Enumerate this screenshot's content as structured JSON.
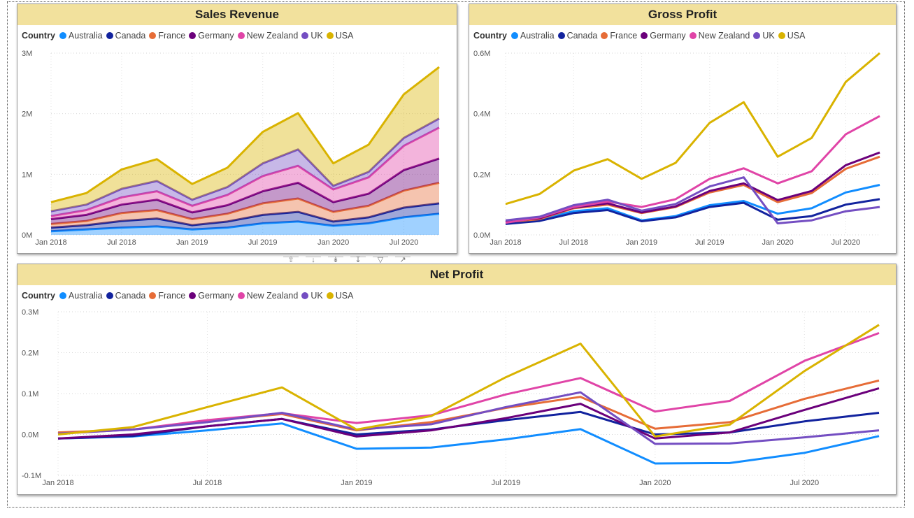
{
  "colors": {
    "Australia": "#118DFF",
    "Canada": "#12239E",
    "France": "#E66C37",
    "Germany": "#6B007B",
    "New Zealand": "#E044A7",
    "UK": "#744EC2",
    "USA": "#D9B300"
  },
  "legend_title": "Country",
  "chart_data": [
    {
      "type": "area",
      "stacked": true,
      "title": "Sales Revenue",
      "legend_title": "Country",
      "x": [
        "Jan 2018",
        "Apr 2018",
        "Jul 2018",
        "Oct 2018",
        "Jan 2019",
        "Apr 2019",
        "Jul 2019",
        "Oct 2019",
        "Jan 2020",
        "Apr 2020",
        "Jul 2020",
        "Oct 2020"
      ],
      "x_tick_labels": [
        "Jan 2018",
        "Jul 2018",
        "Jan 2019",
        "Jul 2019",
        "Jan 2020",
        "Jul 2020"
      ],
      "y_tick_labels": [
        "0M",
        "1M",
        "2M",
        "3M"
      ],
      "ylim": [
        0,
        3000000
      ],
      "series": [
        {
          "name": "Australia",
          "values": [
            60000,
            90000,
            120000,
            140000,
            90000,
            120000,
            190000,
            220000,
            150000,
            190000,
            290000,
            350000
          ]
        },
        {
          "name": "Canada",
          "values": [
            60000,
            70000,
            110000,
            130000,
            70000,
            100000,
            140000,
            160000,
            70000,
            100000,
            160000,
            170000
          ]
        },
        {
          "name": "France",
          "values": [
            60000,
            70000,
            130000,
            140000,
            100000,
            130000,
            190000,
            220000,
            160000,
            190000,
            280000,
            340000
          ]
        },
        {
          "name": "Germany",
          "values": [
            80000,
            100000,
            140000,
            170000,
            110000,
            140000,
            200000,
            260000,
            160000,
            200000,
            340000,
            400000
          ]
        },
        {
          "name": "New Zealand",
          "values": [
            50000,
            80000,
            120000,
            140000,
            110000,
            170000,
            250000,
            280000,
            210000,
            270000,
            400000,
            510000
          ]
        },
        {
          "name": "UK",
          "values": [
            80000,
            90000,
            140000,
            170000,
            100000,
            130000,
            210000,
            270000,
            60000,
            90000,
            130000,
            150000
          ]
        },
        {
          "name": "USA",
          "values": [
            150000,
            190000,
            320000,
            360000,
            260000,
            320000,
            520000,
            600000,
            370000,
            450000,
            720000,
            850000
          ]
        }
      ]
    },
    {
      "type": "line",
      "title": "Gross Profit",
      "legend_title": "Country",
      "x": [
        "Jan 2018",
        "Apr 2018",
        "Jul 2018",
        "Oct 2018",
        "Jan 2019",
        "Apr 2019",
        "Jul 2019",
        "Oct 2019",
        "Jan 2020",
        "Apr 2020",
        "Jul 2020",
        "Oct 2020"
      ],
      "x_tick_labels": [
        "Jan 2018",
        "Jul 2018",
        "Jan 2019",
        "Jul 2019",
        "Jan 2020",
        "Jul 2020"
      ],
      "y_tick_labels": [
        "0.0M",
        "0.2M",
        "0.4M",
        "0.6M"
      ],
      "ylim": [
        0,
        600000
      ],
      "series": [
        {
          "name": "Australia",
          "values": [
            42000,
            52000,
            78000,
            88000,
            48000,
            62000,
            98000,
            112000,
            70000,
            88000,
            140000,
            165000
          ]
        },
        {
          "name": "Canada",
          "values": [
            36000,
            46000,
            72000,
            82000,
            45000,
            58000,
            92000,
            106000,
            50000,
            62000,
            100000,
            118000
          ]
        },
        {
          "name": "France",
          "values": [
            42000,
            52000,
            88000,
            100000,
            72000,
            92000,
            140000,
            165000,
            108000,
            138000,
            218000,
            258000
          ]
        },
        {
          "name": "Germany",
          "values": [
            44000,
            55000,
            90000,
            104000,
            74000,
            94000,
            145000,
            170000,
            115000,
            145000,
            230000,
            272000
          ]
        },
        {
          "name": "New Zealand",
          "values": [
            40000,
            58000,
            92000,
            110000,
            92000,
            118000,
            185000,
            220000,
            170000,
            210000,
            332000,
            392000
          ]
        },
        {
          "name": "UK",
          "values": [
            48000,
            60000,
            98000,
            116000,
            80000,
            102000,
            160000,
            190000,
            38000,
            48000,
            78000,
            92000
          ]
        },
        {
          "name": "USA",
          "values": [
            102000,
            135000,
            212000,
            250000,
            185000,
            238000,
            370000,
            438000,
            258000,
            320000,
            505000,
            600000
          ]
        }
      ]
    },
    {
      "type": "line",
      "title": "Net Profit",
      "legend_title": "Country",
      "x": [
        "Jan 2018",
        "Apr 2018",
        "Jul 2018",
        "Oct 2018",
        "Jan 2019",
        "Apr 2019",
        "Jul 2019",
        "Oct 2019",
        "Jan 2020",
        "Apr 2020",
        "Jul 2020",
        "Oct 2020"
      ],
      "x_tick_labels": [
        "Jan 2018",
        "Jul 2018",
        "Jan 2019",
        "Jul 2019",
        "Jan 2020",
        "Jul 2020"
      ],
      "y_tick_labels": [
        "-0.1M",
        "0.0M",
        "0.1M",
        "0.2M",
        "0.3M"
      ],
      "ylim": [
        -100000,
        300000
      ],
      "series": [
        {
          "name": "Australia",
          "values": [
            -10000,
            -5000,
            10000,
            27000,
            -35000,
            -32000,
            -12000,
            13000,
            -71000,
            -70000,
            -45000,
            -4000
          ]
        },
        {
          "name": "Canada",
          "values": [
            -10000,
            -4000,
            20000,
            38000,
            0,
            12000,
            35000,
            55000,
            0,
            5000,
            32000,
            53000
          ]
        },
        {
          "name": "France",
          "values": [
            5000,
            12000,
            33000,
            50000,
            10000,
            30000,
            65000,
            92000,
            14000,
            30000,
            87000,
            132000
          ]
        },
        {
          "name": "Germany",
          "values": [
            -10000,
            0,
            20000,
            38000,
            -5000,
            10000,
            40000,
            75000,
            -10000,
            5000,
            60000,
            113000
          ]
        },
        {
          "name": "New Zealand",
          "values": [
            2000,
            12000,
            35000,
            52000,
            28000,
            47000,
            98000,
            138000,
            56000,
            82000,
            180000,
            248000
          ]
        },
        {
          "name": "UK",
          "values": [
            2000,
            12000,
            30000,
            53000,
            12000,
            25000,
            67000,
            103000,
            -23000,
            -22000,
            -7000,
            10000
          ]
        },
        {
          "name": "USA",
          "values": [
            0,
            18000,
            67000,
            115000,
            12000,
            45000,
            140000,
            222000,
            -5000,
            24000,
            155000,
            268000
          ]
        }
      ]
    }
  ]
}
